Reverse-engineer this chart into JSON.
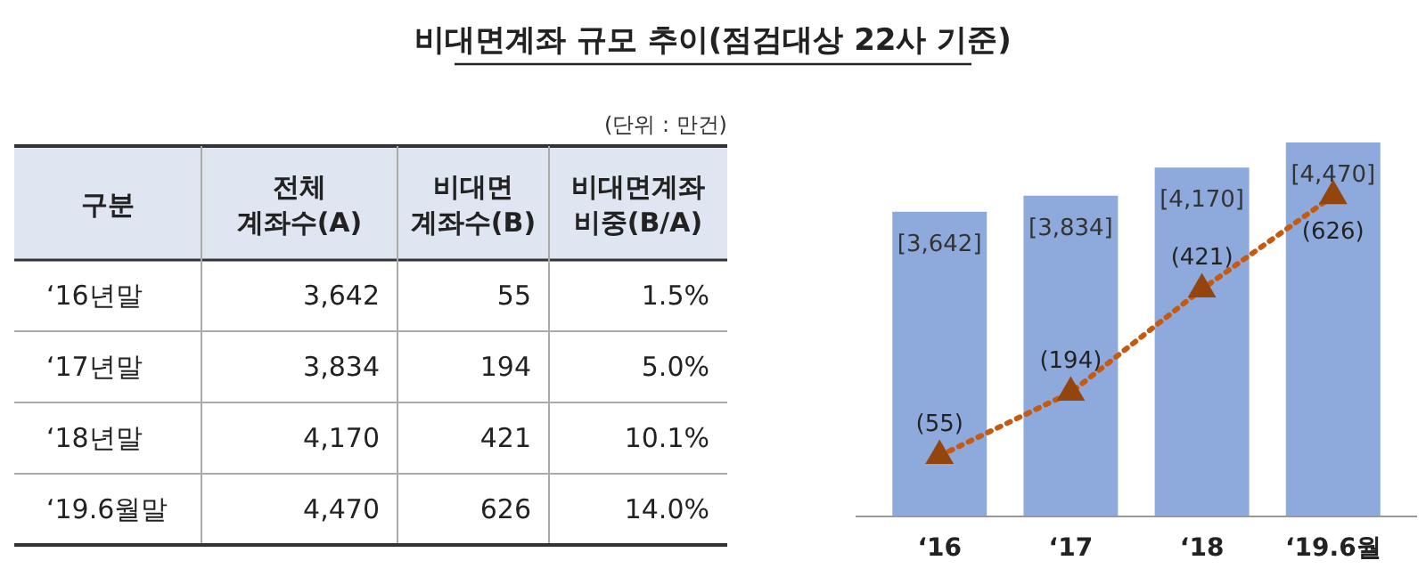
{
  "chart_data": [
    {
      "type": "other",
      "title": "비대면계좌 규모 추이(점검대상 22사 기준)",
      "subtitle": "(단위 : 만건)",
      "annotations": [
        "구분",
        "전체 계좌수(A)",
        "비대면 계좌수(B)",
        "비대면계좌 비중(B/A)",
        "‘16년말",
        "3,642",
        "55",
        "1.5%",
        "‘17년말",
        "3,834",
        "194",
        "5.0%",
        "‘18년말",
        "4,170",
        "421",
        "10.1%",
        "‘19.6월말",
        "4,470",
        "626",
        "14.0%"
      ]
    },
    {
      "type": "bar",
      "categories": [
        "‘16",
        "‘17",
        "‘18",
        "‘19.6월"
      ],
      "tick_labels": "x",
      "series": [
        {
          "type": "bar",
          "color": "#8eaadc",
          "values": [
            3642,
            3834,
            4170,
            4470
          ],
          "value_labels": [
            "[3,642]",
            "[3,834]",
            "[4,170]",
            "[4,470]"
          ]
        },
        {
          "type": "line",
          "axis": "y2",
          "color": "#c55a11",
          "marker": "triangle",
          "line_style": "dotted",
          "values": [
            55,
            194,
            421,
            626
          ],
          "value_labels": [
            "(55)",
            "(194)",
            "(421)",
            "(626)"
          ]
        }
      ]
    }
  ]
}
